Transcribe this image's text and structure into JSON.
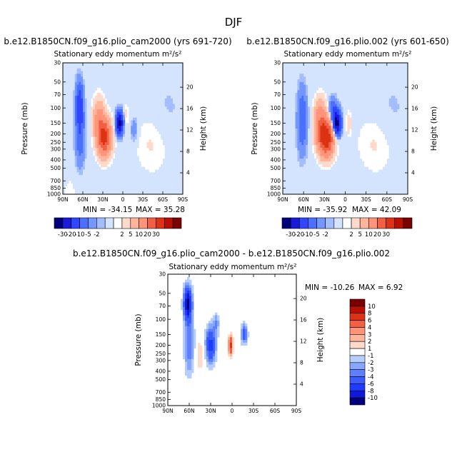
{
  "page_title": "DJF",
  "colors": {
    "background": "#ffffff",
    "neutral": "#ffffff"
  },
  "chart_data": [
    {
      "type": "heatmap",
      "id": "panel1",
      "title": "b.e12.B1850CN.f09_g16.plio_cam2000 (yrs 691-720)",
      "subtitle": "Stationary eddy momentum",
      "units": "m²/s²",
      "xlabel": "",
      "ylabel": "Pressure (mb)",
      "y2label": "Height (km)",
      "xticks": [
        "90N",
        "60N",
        "30N",
        "0",
        "30S",
        "60S",
        "90S"
      ],
      "yticks": [
        "30",
        "50",
        "70",
        "100",
        "150",
        "200",
        "250",
        "300",
        "400",
        "500",
        "700",
        "850",
        "1000"
      ],
      "y2ticks": [
        "20",
        "16",
        "12",
        "8",
        "4"
      ],
      "xlim": [
        90,
        -90
      ],
      "ylim": [
        1000,
        30
      ],
      "min_text": "MIN = -34.15",
      "max_text": "MAX = 35.28",
      "min": -34.15,
      "max": 35.28,
      "features": [
        {
          "lat": 65,
          "p": 90,
          "value": -14,
          "sx": 4,
          "sp": 0.42
        },
        {
          "lat": 64,
          "p": 220,
          "value": -8,
          "sx": 5,
          "sp": 0.5
        },
        {
          "lat": 28,
          "p": 220,
          "value": 35,
          "sx": 7,
          "sp": 0.32
        },
        {
          "lat": 36,
          "p": 130,
          "value": 12,
          "sx": 6,
          "sp": 0.35
        },
        {
          "lat": 5,
          "p": 150,
          "value": -34,
          "sx": 3.5,
          "sp": 0.2
        },
        {
          "lat": -17,
          "p": 180,
          "value": -4,
          "sx": 4,
          "sp": 0.25
        },
        {
          "lat": -5,
          "p": 120,
          "value": 3,
          "sx": 2.5,
          "sp": 0.2
        },
        {
          "lat": -45,
          "p": 250,
          "value": 2.5,
          "sx": 20,
          "sp": 0.6
        },
        {
          "lat": -65,
          "p": 120,
          "value": -1.5,
          "sx": 20,
          "sp": 0.7
        },
        {
          "lat": 80,
          "p": 900,
          "value": 2,
          "sx": 6,
          "sp": 0.2
        }
      ]
    },
    {
      "type": "heatmap",
      "id": "panel2",
      "title": "b.e12.B1850CN.f09_g16.plio.002 (yrs 601-650)",
      "subtitle": "Stationary eddy momentum",
      "units": "m²/s²",
      "xlabel": "",
      "ylabel": "Pressure (mb)",
      "y2label": "Height (km)",
      "xticks": [
        "90N",
        "60N",
        "30N",
        "0",
        "30S",
        "60S",
        "90S"
      ],
      "yticks": [
        "30",
        "50",
        "70",
        "100",
        "150",
        "200",
        "250",
        "300",
        "400",
        "500",
        "700",
        "850",
        "1000"
      ],
      "y2ticks": [
        "20",
        "16",
        "12",
        "8",
        "4"
      ],
      "xlim": [
        90,
        -90
      ],
      "ylim": [
        1000,
        30
      ],
      "min_text": "MIN = -35.92",
      "max_text": "MAX = 42.09",
      "min": -35.92,
      "max": 42.09,
      "features": [
        {
          "lat": 62,
          "p": 140,
          "value": -9,
          "sx": 5,
          "sp": 0.6
        },
        {
          "lat": 28,
          "p": 220,
          "value": 42,
          "sx": 7.5,
          "sp": 0.32
        },
        {
          "lat": 36,
          "p": 130,
          "value": 14,
          "sx": 6,
          "sp": 0.35
        },
        {
          "lat": 12,
          "p": 150,
          "value": -36,
          "sx": 4,
          "sp": 0.22
        },
        {
          "lat": 18,
          "p": 110,
          "value": -10,
          "sx": 4,
          "sp": 0.25
        },
        {
          "lat": -5,
          "p": 150,
          "value": 4,
          "sx": 2.5,
          "sp": 0.2
        },
        {
          "lat": -45,
          "p": 250,
          "value": 2.5,
          "sx": 20,
          "sp": 0.6
        },
        {
          "lat": -65,
          "p": 120,
          "value": -1.5,
          "sx": 20,
          "sp": 0.7
        }
      ]
    },
    {
      "type": "heatmap",
      "id": "panel3",
      "title": "b.e12.B1850CN.f09_g16.plio_cam2000 - b.e12.B1850CN.f09_g16.plio.002",
      "subtitle": "Stationary eddy momentum",
      "units": "m²/s²",
      "xlabel": "",
      "ylabel": "Pressure (mb)",
      "y2label": "Height (km)",
      "xticks": [
        "90N",
        "60N",
        "30N",
        "0",
        "30S",
        "60S",
        "90S"
      ],
      "yticks": [
        "30",
        "50",
        "70",
        "100",
        "150",
        "200",
        "250",
        "300",
        "400",
        "500",
        "700",
        "850",
        "1000"
      ],
      "y2ticks": [
        "20",
        "16",
        "12",
        "8",
        "4"
      ],
      "xlim": [
        90,
        -90
      ],
      "ylim": [
        1000,
        30
      ],
      "min_text": "MIN = -10.26",
      "max_text": "MAX =  6.92",
      "min": -10.26,
      "max": 6.92,
      "features": [
        {
          "lat": 62,
          "p": 65,
          "value": -10.26,
          "sx": 4,
          "sp": 0.32
        },
        {
          "lat": 60,
          "p": 200,
          "value": -4,
          "sx": 5,
          "sp": 0.55
        },
        {
          "lat": 30,
          "p": 200,
          "value": -7,
          "sx": 5,
          "sp": 0.35
        },
        {
          "lat": 22,
          "p": 110,
          "value": -3,
          "sx": 3,
          "sp": 0.2
        },
        {
          "lat": 2,
          "p": 200,
          "value": 6.92,
          "sx": 2.2,
          "sp": 0.18
        },
        {
          "lat": -17,
          "p": 150,
          "value": -5,
          "sx": 3.5,
          "sp": 0.2
        },
        {
          "lat": 45,
          "p": 260,
          "value": 2,
          "sx": 4,
          "sp": 0.3
        },
        {
          "lat": -40,
          "p": 300,
          "value": 1,
          "sx": 18,
          "sp": 0.6
        },
        {
          "lat": 10,
          "p": 80,
          "value": 1,
          "sx": 6,
          "sp": 0.25
        }
      ]
    }
  ],
  "colorbar_main": {
    "labels": [
      "-30",
      "-20",
      "-10",
      "-5",
      "-2",
      "2",
      "5",
      "10",
      "20",
      "30"
    ],
    "levels": [
      -30,
      -20,
      -10,
      -5,
      -2,
      -1,
      1,
      2,
      5,
      10,
      20,
      30
    ],
    "colors": [
      "#00007f",
      "#1a1ad9",
      "#2e47ff",
      "#4b70ff",
      "#7397ff",
      "#a3bdff",
      "#d4e4ff",
      "#ffffff",
      "#ffd9c9",
      "#ffb59c",
      "#ff9478",
      "#f26044",
      "#dd3214",
      "#b80f00",
      "#7a0000"
    ]
  },
  "colorbar_diff": {
    "labels": [
      "10",
      "8",
      "6",
      "4",
      "3",
      "2",
      "1",
      "-1",
      "-2",
      "-3",
      "-4",
      "-6",
      "-8",
      "-10"
    ],
    "levels": [
      -10,
      -8,
      -6,
      -4,
      -3,
      -2,
      -1,
      1,
      2,
      3,
      4,
      6,
      8,
      10
    ],
    "colors": [
      "#00007f",
      "#0f1ad9",
      "#1f3bff",
      "#3a5cff",
      "#5e80ff",
      "#86a6ff",
      "#b6cdff",
      "#ffffff",
      "#ffd9c9",
      "#ffb59c",
      "#ff9478",
      "#f26044",
      "#dd3214",
      "#b80f00",
      "#7a0000"
    ]
  }
}
